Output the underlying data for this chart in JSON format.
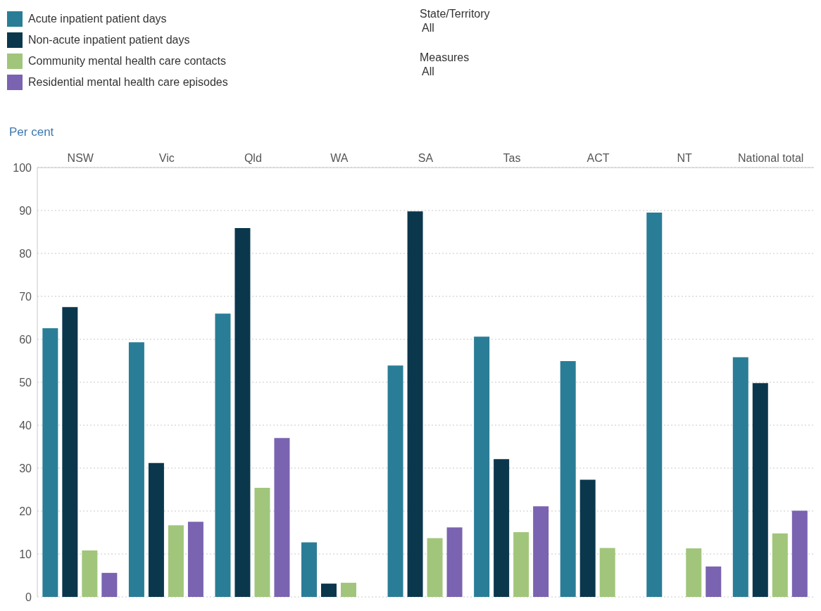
{
  "chart_data": {
    "type": "bar",
    "ylabel": "Per cent",
    "categories": [
      "NSW",
      "Vic",
      "Qld",
      "WA",
      "SA",
      "Tas",
      "ACT",
      "NT",
      "National total"
    ],
    "series": [
      {
        "name": "Acute inpatient patient days",
        "color": "#2a7d96",
        "values": [
          62.6,
          59.3,
          66.0,
          12.7,
          53.9,
          60.6,
          54.9,
          89.5,
          55.8
        ]
      },
      {
        "name": "Non-acute inpatient patient days",
        "color": "#0b374d",
        "values": [
          67.5,
          31.2,
          85.9,
          3.1,
          89.8,
          32.1,
          27.3,
          null,
          49.8
        ]
      },
      {
        "name": "Community mental health care contacts",
        "color": "#a1c67b",
        "values": [
          10.8,
          16.7,
          25.4,
          3.3,
          13.7,
          15.1,
          11.4,
          11.3,
          14.8
        ]
      },
      {
        "name": "Residential mental health care episodes",
        "color": "#7a63b0",
        "values": [
          5.6,
          17.5,
          37.0,
          null,
          16.2,
          21.1,
          null,
          7.1,
          20.1
        ]
      }
    ],
    "ylim": [
      0,
      100
    ],
    "yticks": [
      0,
      10,
      20,
      30,
      40,
      50,
      60,
      70,
      80,
      90,
      100
    ],
    "grid": "y",
    "legend": "top left",
    "annotations": [
      "State/Territory",
      "All",
      "Measures",
      "All"
    ]
  }
}
